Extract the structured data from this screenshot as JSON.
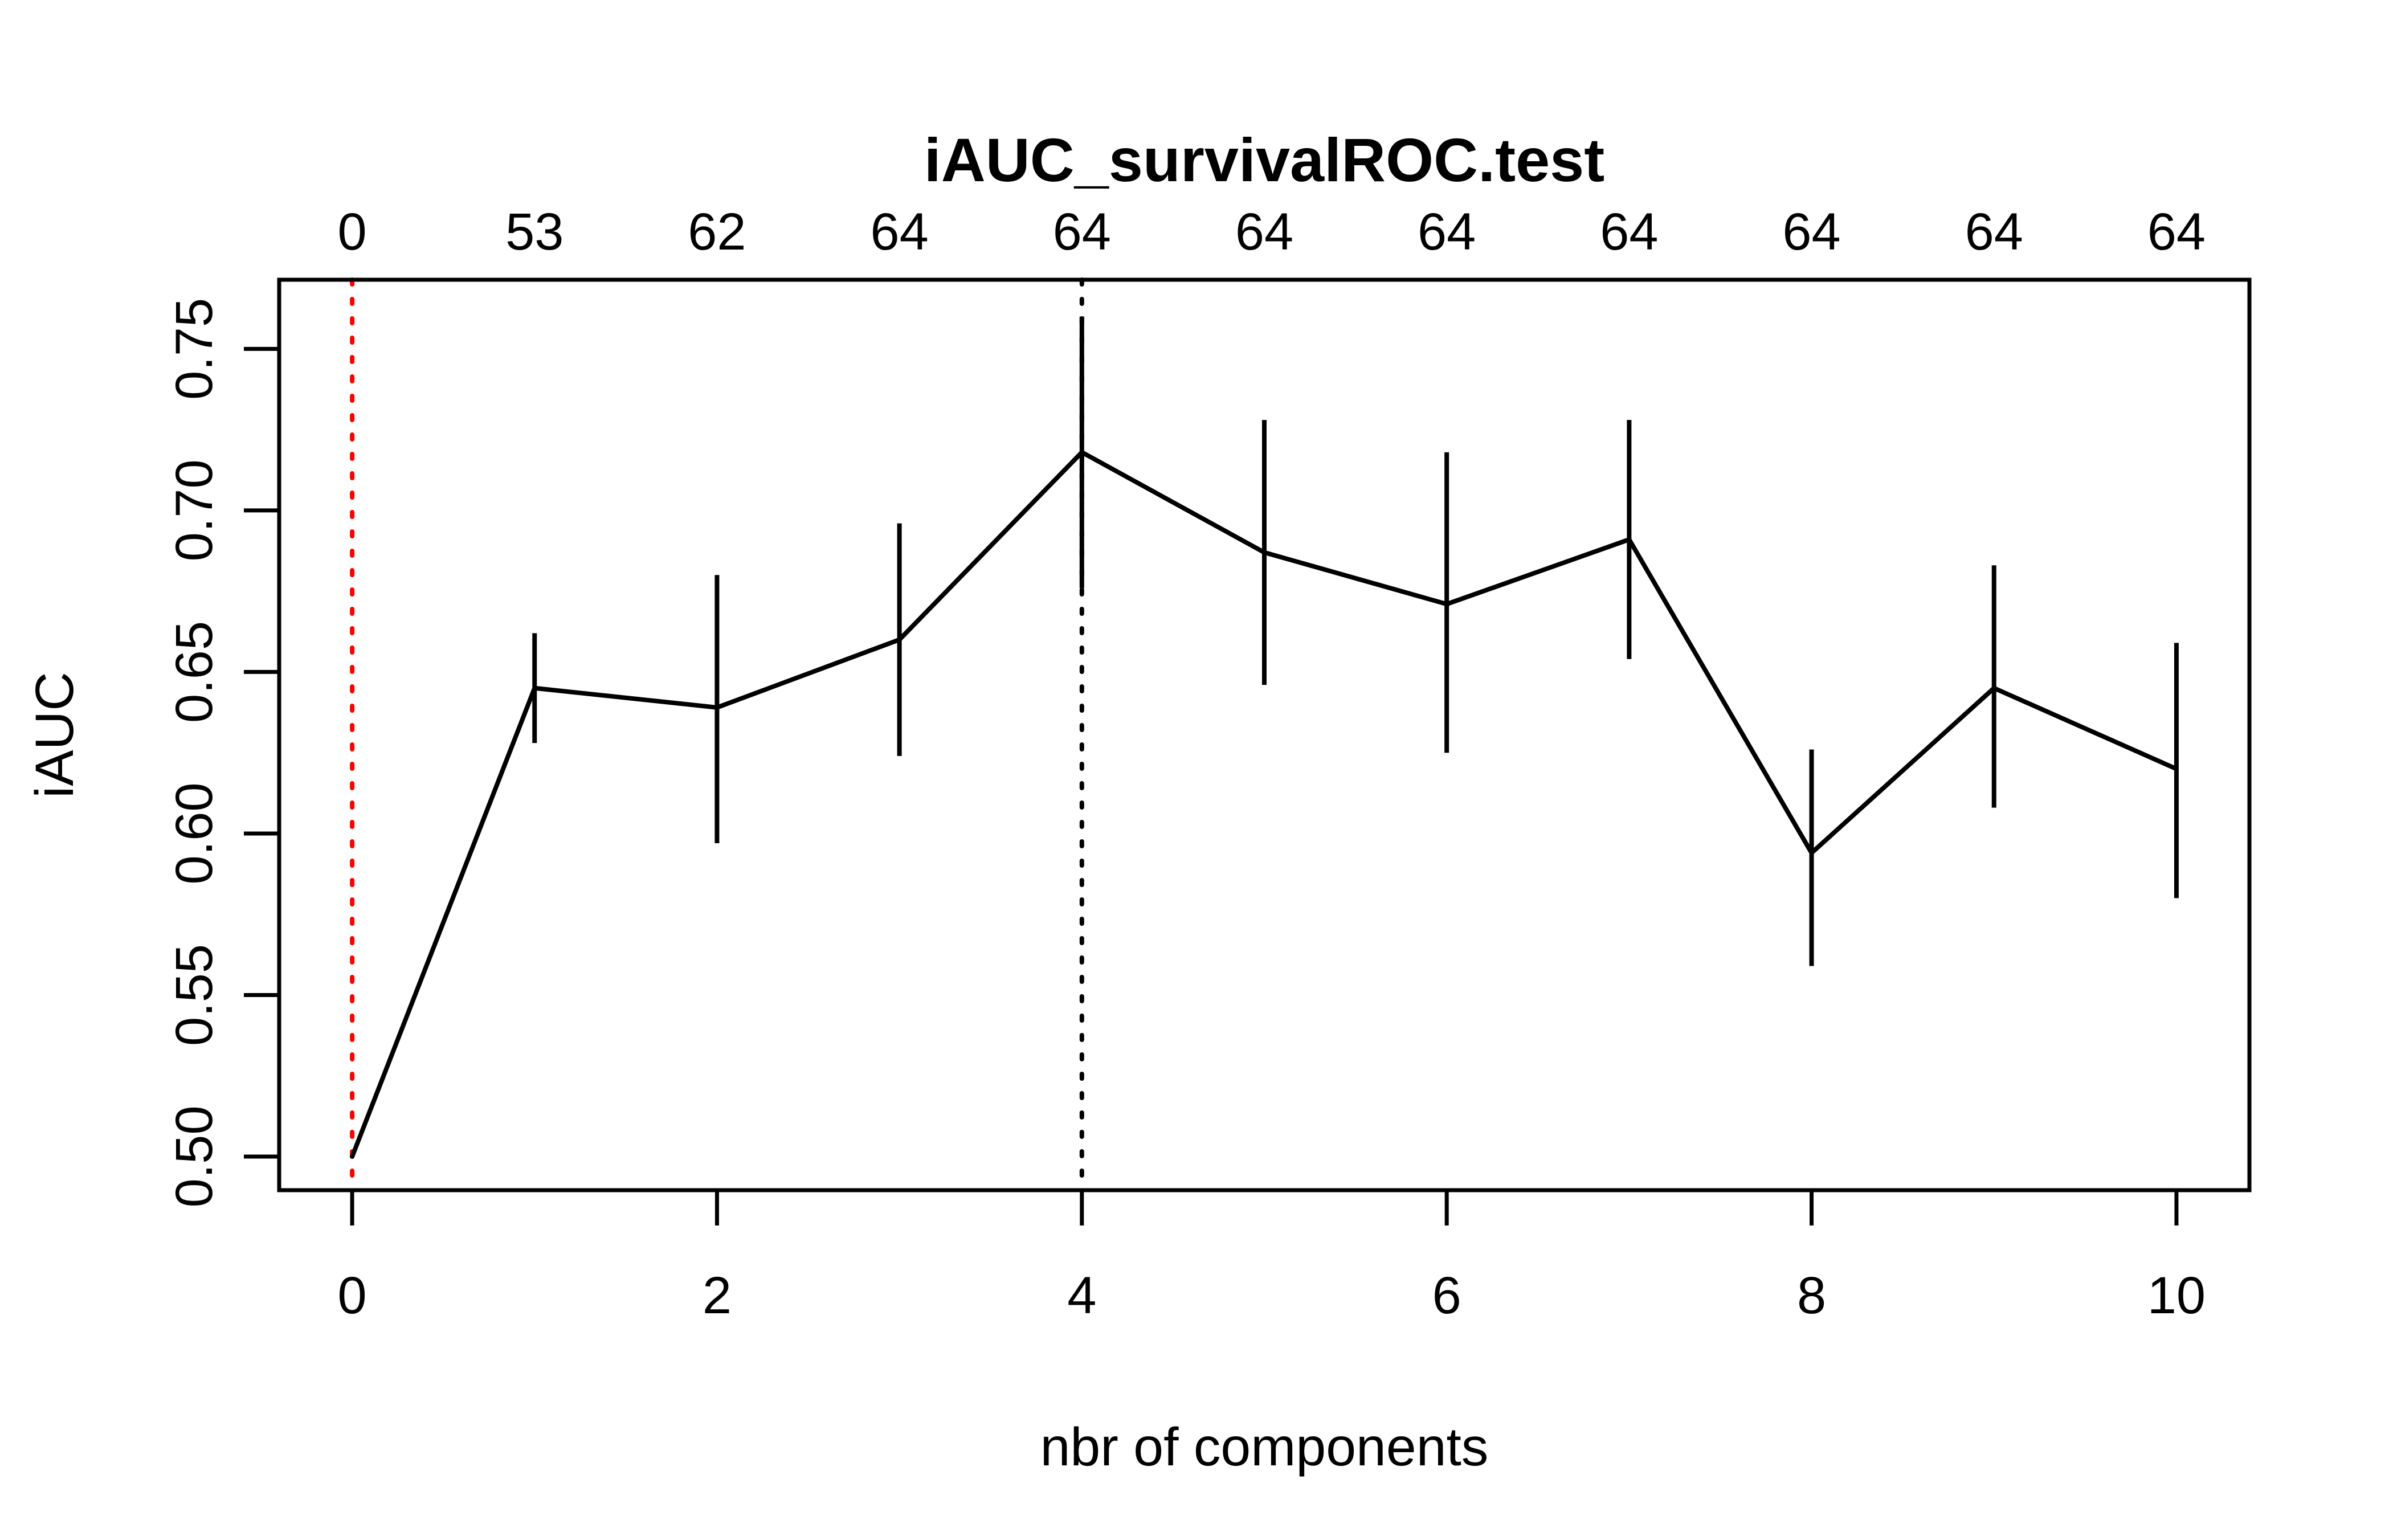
{
  "figure": {
    "background": "#FFFFFF",
    "title": "iAUC_survivalROC.test"
  },
  "chart_data": {
    "type": "line",
    "title": "iAUC_survivalROC.test",
    "xlabel": "nbr of components",
    "ylabel": "iAUC",
    "x": [
      0,
      1,
      2,
      3,
      4,
      5,
      6,
      7,
      8,
      9,
      10
    ],
    "series": [
      {
        "name": "iAUC",
        "values": [
          0.5,
          0.645,
          0.639,
          0.66,
          0.718,
          0.687,
          0.671,
          0.691,
          0.594,
          0.645,
          0.62
        ],
        "ci_lower": [
          null,
          0.628,
          0.597,
          0.624,
          0.676,
          0.646,
          0.625,
          0.654,
          0.559,
          0.608,
          0.58
        ],
        "ci_upper": [
          null,
          0.662,
          0.68,
          0.696,
          0.76,
          0.728,
          0.718,
          0.728,
          0.626,
          0.683,
          0.659
        ]
      }
    ],
    "top_axis_labels": [
      "0",
      "53",
      "62",
      "64",
      "64",
      "64",
      "64",
      "64",
      "64",
      "64",
      "64"
    ],
    "x_ticks": [
      0,
      2,
      4,
      6,
      8,
      10
    ],
    "x_tick_labels": [
      "0",
      "2",
      "4",
      "6",
      "8",
      "10"
    ],
    "y_ticks": [
      0.5,
      0.55,
      0.6,
      0.65,
      0.7,
      0.75
    ],
    "y_tick_labels": [
      "0.50",
      "0.55",
      "0.60",
      "0.65",
      "0.70",
      "0.75"
    ],
    "xlim": [
      -0.4,
      10.4
    ],
    "ylim": [
      0.4896,
      0.7714
    ],
    "grid": false,
    "legend": null,
    "reference_lines": [
      {
        "axis": "x",
        "at": 0,
        "style": "dotted",
        "color": "#FF0000",
        "name": "red-dotted-vline"
      },
      {
        "axis": "x",
        "at": 4,
        "style": "dotted",
        "color": "#000000",
        "name": "black-dotted-vline"
      }
    ],
    "colors": {
      "line": "#000000",
      "box": "#000000",
      "text": "#000000",
      "background": "#FFFFFF",
      "accent_red": "#FF0000"
    }
  }
}
